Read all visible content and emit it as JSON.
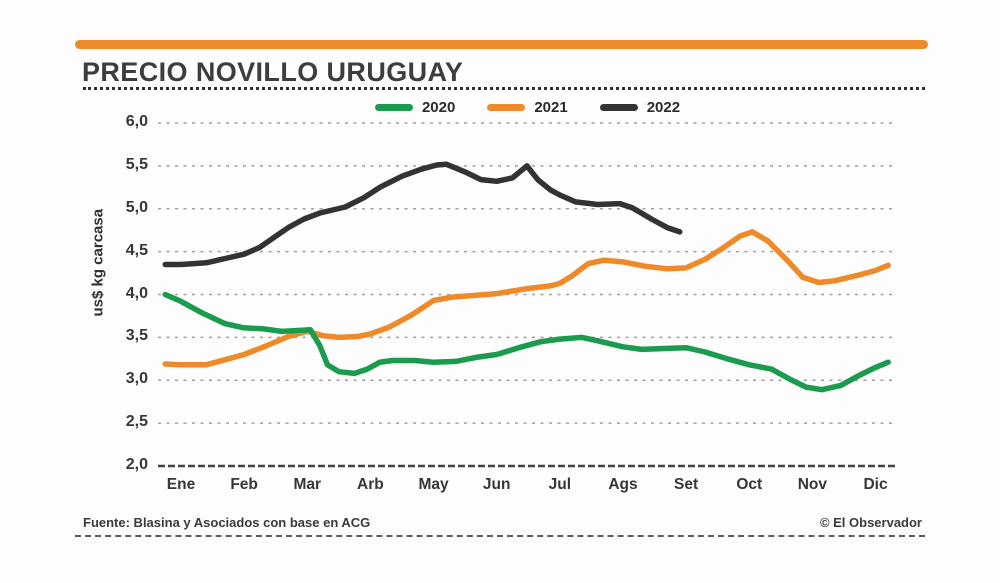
{
  "header": {
    "title": "PRECIO NOVILLO URUGUAY"
  },
  "footer": {
    "source": "Fuente: Blasina y Asociados con base en  ACG",
    "copyright": "© El Observador"
  },
  "colors": {
    "accent_bar": "#ef8a2b",
    "grid": "#a0a0a0",
    "axis": "#434343",
    "text": "#363636"
  },
  "chart_data": {
    "type": "line",
    "title": "PRECIO NOVILLO URUGUAY",
    "xlabel": "",
    "ylabel": "us$ kg carcasa",
    "ylim": [
      2.0,
      6.0
    ],
    "grid": "dashed-horizontal",
    "legend_position": "top-center",
    "x_categories": [
      "Ene",
      "Feb",
      "Mar",
      "Arb",
      "May",
      "Jun",
      "Jul",
      "Ags",
      "Set",
      "Oct",
      "Nov",
      "Dic"
    ],
    "x_unit": "month_index_0based",
    "ytick_values": [
      6.0,
      5.5,
      5.0,
      4.5,
      4.0,
      3.5,
      3.0,
      2.5,
      2.0
    ],
    "ytick_labels": [
      "6,0",
      "5,5",
      "5,0",
      "4,5",
      "4,0",
      "3,5",
      "3,0",
      "2,5",
      "2,0"
    ],
    "draw_order": [
      "2021",
      "2020",
      "2022"
    ],
    "series": [
      {
        "name": "2020",
        "color": "#1b9b4e",
        "points": [
          [
            -0.25,
            4.0
          ],
          [
            0,
            3.92
          ],
          [
            0.35,
            3.78
          ],
          [
            0.7,
            3.66
          ],
          [
            1,
            3.61
          ],
          [
            1.3,
            3.6
          ],
          [
            1.6,
            3.57
          ],
          [
            1.85,
            3.58
          ],
          [
            2.05,
            3.59
          ],
          [
            2.2,
            3.4
          ],
          [
            2.32,
            3.18
          ],
          [
            2.5,
            3.1
          ],
          [
            2.75,
            3.08
          ],
          [
            2.95,
            3.13
          ],
          [
            3.15,
            3.21
          ],
          [
            3.35,
            3.23
          ],
          [
            3.7,
            3.23
          ],
          [
            4,
            3.21
          ],
          [
            4.35,
            3.22
          ],
          [
            4.7,
            3.27
          ],
          [
            5,
            3.3
          ],
          [
            5.35,
            3.38
          ],
          [
            5.7,
            3.45
          ],
          [
            6,
            3.48
          ],
          [
            6.35,
            3.5
          ],
          [
            6.6,
            3.46
          ],
          [
            7,
            3.39
          ],
          [
            7.3,
            3.36
          ],
          [
            7.65,
            3.37
          ],
          [
            8,
            3.38
          ],
          [
            8.3,
            3.33
          ],
          [
            8.65,
            3.25
          ],
          [
            9,
            3.18
          ],
          [
            9.35,
            3.13
          ],
          [
            9.65,
            3.01
          ],
          [
            9.9,
            2.92
          ],
          [
            10.15,
            2.89
          ],
          [
            10.45,
            2.94
          ],
          [
            10.75,
            3.06
          ],
          [
            11,
            3.15
          ],
          [
            11.2,
            3.21
          ]
        ]
      },
      {
        "name": "2021",
        "color": "#ef8a2b",
        "points": [
          [
            -0.25,
            3.19
          ],
          [
            0,
            3.18
          ],
          [
            0.4,
            3.18
          ],
          [
            0.7,
            3.24
          ],
          [
            1,
            3.3
          ],
          [
            1.35,
            3.4
          ],
          [
            1.7,
            3.51
          ],
          [
            2,
            3.57
          ],
          [
            2.25,
            3.52
          ],
          [
            2.5,
            3.5
          ],
          [
            2.8,
            3.51
          ],
          [
            3,
            3.54
          ],
          [
            3.3,
            3.62
          ],
          [
            3.65,
            3.76
          ],
          [
            4,
            3.93
          ],
          [
            4.3,
            3.97
          ],
          [
            4.65,
            3.99
          ],
          [
            5,
            4.01
          ],
          [
            5.5,
            4.07
          ],
          [
            5.85,
            4.1
          ],
          [
            6,
            4.13
          ],
          [
            6.2,
            4.22
          ],
          [
            6.45,
            4.36
          ],
          [
            6.7,
            4.4
          ],
          [
            7,
            4.38
          ],
          [
            7.35,
            4.33
          ],
          [
            7.7,
            4.3
          ],
          [
            8,
            4.31
          ],
          [
            8.3,
            4.41
          ],
          [
            8.6,
            4.55
          ],
          [
            8.85,
            4.68
          ],
          [
            9.05,
            4.73
          ],
          [
            9.3,
            4.62
          ],
          [
            9.6,
            4.4
          ],
          [
            9.85,
            4.2
          ],
          [
            10.1,
            4.14
          ],
          [
            10.35,
            4.16
          ],
          [
            10.7,
            4.22
          ],
          [
            11,
            4.28
          ],
          [
            11.2,
            4.34
          ]
        ]
      },
      {
        "name": "2022",
        "color": "#333333",
        "points": [
          [
            -0.25,
            4.35
          ],
          [
            0,
            4.35
          ],
          [
            0.4,
            4.37
          ],
          [
            0.7,
            4.42
          ],
          [
            1,
            4.47
          ],
          [
            1.25,
            4.55
          ],
          [
            1.5,
            4.68
          ],
          [
            1.7,
            4.78
          ],
          [
            1.95,
            4.88
          ],
          [
            2.2,
            4.95
          ],
          [
            2.6,
            5.02
          ],
          [
            2.9,
            5.13
          ],
          [
            3.15,
            5.25
          ],
          [
            3.5,
            5.38
          ],
          [
            3.8,
            5.46
          ],
          [
            4.05,
            5.51
          ],
          [
            4.2,
            5.52
          ],
          [
            4.5,
            5.43
          ],
          [
            4.75,
            5.34
          ],
          [
            5,
            5.32
          ],
          [
            5.25,
            5.36
          ],
          [
            5.48,
            5.5
          ],
          [
            5.65,
            5.34
          ],
          [
            5.85,
            5.22
          ],
          [
            6,
            5.16
          ],
          [
            6.25,
            5.08
          ],
          [
            6.6,
            5.05
          ],
          [
            6.95,
            5.06
          ],
          [
            7.15,
            5.01
          ],
          [
            7.45,
            4.88
          ],
          [
            7.7,
            4.78
          ],
          [
            7.9,
            4.73
          ]
        ]
      }
    ]
  }
}
